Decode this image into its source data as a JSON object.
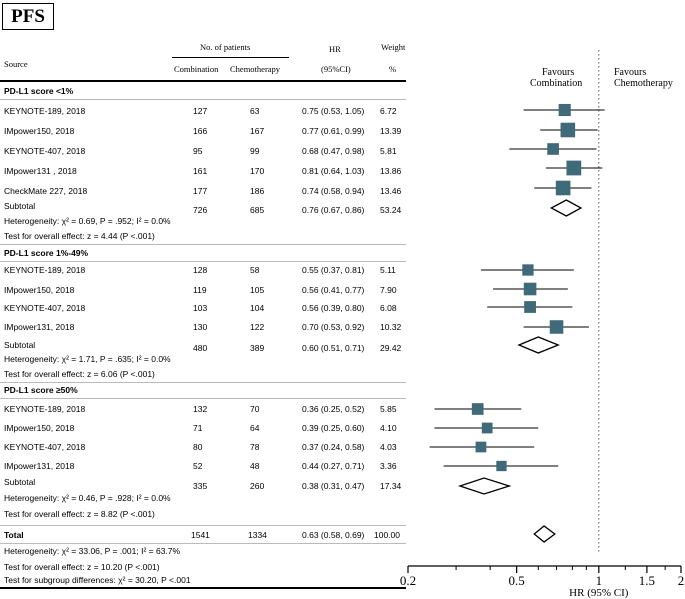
{
  "figure_label": "PFS",
  "header": {
    "source": "Source",
    "no_patients": "No. of patients",
    "combination": "Combination",
    "chemotherapy": "Chemotherapy",
    "hr": "HR",
    "ci": "(95%CI)",
    "weight": "Weight",
    "pct": "%"
  },
  "favours": {
    "left_line1": "Favours",
    "left_line2": "Combination",
    "right_line1": "Favours",
    "right_line2": "Chemotherapy"
  },
  "colors": {
    "marker": "#3f6a79",
    "line": "#000000",
    "reference": "#555555"
  },
  "subgroups": [
    {
      "title": "PD-L1 score <1%",
      "studies": [
        {
          "name": "KEYNOTE-189, 2018",
          "combination": "127",
          "chemotherapy": "63",
          "hr_text": "0.75 (0.53, 1.05)",
          "weight": "6.72",
          "hr": 0.75,
          "lo": 0.53,
          "hi": 1.05
        },
        {
          "name": "IMpower150, 2018",
          "combination": "166",
          "chemotherapy": "167",
          "hr_text": "0.77 (0.61, 0.99)",
          "weight": "13.39",
          "hr": 0.77,
          "lo": 0.61,
          "hi": 0.99
        },
        {
          "name": "KEYNOTE-407, 2018",
          "combination": "95",
          "chemotherapy": "99",
          "hr_text": "0.68 (0.47, 0.98)",
          "weight": "5.81",
          "hr": 0.68,
          "lo": 0.47,
          "hi": 0.98
        },
        {
          "name": "IMpower131 , 2018",
          "combination": "161",
          "chemotherapy": "170",
          "hr_text": "0.81 (0.64, 1.03)",
          "weight": "13.86",
          "hr": 0.81,
          "lo": 0.64,
          "hi": 1.03
        },
        {
          "name": "CheckMate 227, 2018",
          "combination": "177",
          "chemotherapy": "186",
          "hr_text": "0.74 (0.58, 0.94)",
          "weight": "13.46",
          "hr": 0.74,
          "lo": 0.58,
          "hi": 0.94
        }
      ],
      "subtotal": {
        "label": "Subtotal",
        "combination": "726",
        "chemotherapy": "685",
        "hr_text": "0.76 (0.67, 0.86)",
        "weight": "53.24",
        "hr": 0.76,
        "lo": 0.67,
        "hi": 0.86
      },
      "heterogeneity": "Heterogeneity: χ² = 0.69, P = .952; I² = 0.0%",
      "overall": "Test for overall effect: z = 4.44 (P <.001)"
    },
    {
      "title": "PD-L1 score 1%-49%",
      "studies": [
        {
          "name": "KEYNOTE-189, 2018",
          "combination": "128",
          "chemotherapy": "58",
          "hr_text": "0.55 (0.37, 0.81)",
          "weight": "5.11",
          "hr": 0.55,
          "lo": 0.37,
          "hi": 0.81
        },
        {
          "name": "IMpower150, 2018",
          "combination": "119",
          "chemotherapy": "105",
          "hr_text": "0.56 (0.41, 0.77)",
          "weight": "7.90",
          "hr": 0.56,
          "lo": 0.41,
          "hi": 0.77
        },
        {
          "name": "KEYNOTE-407, 2018",
          "combination": "103",
          "chemotherapy": "104",
          "hr_text": "0.56 (0.39, 0.80)",
          "weight": "6.08",
          "hr": 0.56,
          "lo": 0.39,
          "hi": 0.8
        },
        {
          "name": "IMpower131, 2018",
          "combination": "130",
          "chemotherapy": "122",
          "hr_text": "0.70 (0.53, 0.92)",
          "weight": "10.32",
          "hr": 0.7,
          "lo": 0.53,
          "hi": 0.92
        }
      ],
      "subtotal": {
        "label": "Subtotal",
        "combination": "480",
        "chemotherapy": "389",
        "hr_text": "0.60 (0.51, 0.71)",
        "weight": "29.42",
        "hr": 0.6,
        "lo": 0.51,
        "hi": 0.71
      },
      "heterogeneity": "Heterogeneity: χ² = 1.71, P = .635; I² = 0.0%",
      "overall": "Test for overall effect: z = 6.06 (P <.001)"
    },
    {
      "title": "PD-L1 score ≥50%",
      "studies": [
        {
          "name": "KEYNOTE-189, 2018",
          "combination": "132",
          "chemotherapy": "70",
          "hr_text": "0.36 (0.25, 0.52)",
          "weight": "5.85",
          "hr": 0.36,
          "lo": 0.25,
          "hi": 0.52
        },
        {
          "name": "IMpower150, 2018",
          "combination": "71",
          "chemotherapy": "64",
          "hr_text": "0.39 (0.25, 0.60)",
          "weight": "4.10",
          "hr": 0.39,
          "lo": 0.25,
          "hi": 0.6
        },
        {
          "name": "KEYNOTE-407, 2018",
          "combination": "80",
          "chemotherapy": "78",
          "hr_text": "0.37 (0.24, 0.58)",
          "weight": "4.03",
          "hr": 0.37,
          "lo": 0.24,
          "hi": 0.58
        },
        {
          "name": "IMpower131, 2018",
          "combination": "52",
          "chemotherapy": "48",
          "hr_text": "0.44 (0.27, 0.71)",
          "weight": "3.36",
          "hr": 0.44,
          "lo": 0.27,
          "hi": 0.71
        }
      ],
      "subtotal": {
        "label": "Subtotal",
        "combination": "335",
        "chemotherapy": "260",
        "hr_text": "0.38 (0.31, 0.47)",
        "weight": "17.34",
        "hr": 0.38,
        "lo": 0.31,
        "hi": 0.47
      },
      "heterogeneity": "Heterogeneity: χ² = 0.46, P = .928; I² = 0.0%",
      "overall": "Test for overall effect: z = 8.82 (P <.001)"
    }
  ],
  "total": {
    "label": "Total",
    "combination": "1541",
    "chemotherapy": "1334",
    "hr_text": "0.63 (0.58, 0.69)",
    "weight": "100.00",
    "hr": 0.63,
    "lo": 0.58,
    "hi": 0.69
  },
  "footer": {
    "heterogeneity": "Heterogeneity: χ² = 33.06, P = .001; I² = 63.7%",
    "overall": "Test for overall effect: z = 10.20 (P <.001)",
    "subgroup_diff": "Test for subgroup differences: χ² = 30.20, P <.001"
  },
  "chart_data": {
    "type": "forest",
    "scale": "log",
    "xlim": [
      0.2,
      2
    ],
    "ticks": [
      0.2,
      0.5,
      1,
      1.5,
      2
    ],
    "tick_labels": [
      "0.2",
      "0.5",
      "1",
      "1.5",
      "2"
    ],
    "reference_line": 1,
    "xlabel": "HR (95% CI)"
  }
}
